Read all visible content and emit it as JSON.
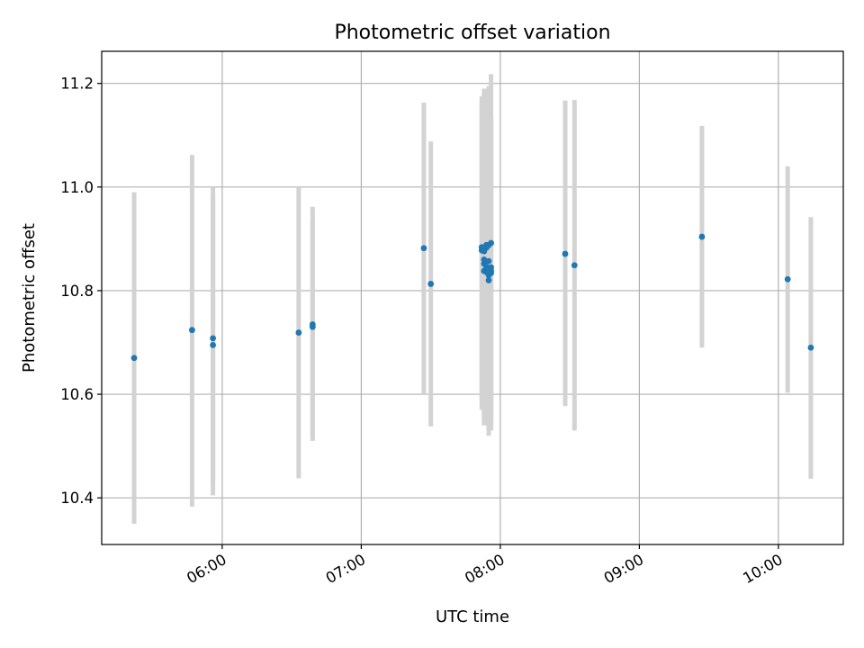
{
  "chart_data": {
    "type": "scatter",
    "title": "Photometric offset variation",
    "xlabel": "UTC time",
    "ylabel": "Photometric offset",
    "x_tick_labels": [
      "06:00",
      "07:00",
      "08:00",
      "09:00",
      "10:00"
    ],
    "x_ticks_hours": [
      6,
      7,
      8,
      9,
      10
    ],
    "y_tick_labels": [
      "10.4",
      "10.6",
      "10.8",
      "11.0",
      "11.2"
    ],
    "y_ticks": [
      10.4,
      10.6,
      10.8,
      11.0,
      11.2
    ],
    "xlim": [
      "05:08",
      "10:28"
    ],
    "ylim": [
      10.31,
      11.262
    ],
    "grid": true,
    "marker_color": "#1f77b4",
    "errorbar_color": "#d3d3d3",
    "points": [
      {
        "x": "05:22",
        "y": 10.67,
        "ylow": 10.35,
        "yhigh": 10.99
      },
      {
        "x": "05:47",
        "y": 10.724,
        "ylow": 10.383,
        "yhigh": 11.062
      },
      {
        "x": "05:56",
        "y": 10.708,
        "ylow": 10.43,
        "yhigh": 11.0
      },
      {
        "x": "05:56",
        "y": 10.695,
        "ylow": 10.405,
        "yhigh": 10.985
      },
      {
        "x": "06:33",
        "y": 10.719,
        "ylow": 10.438,
        "yhigh": 11.0
      },
      {
        "x": "06:39",
        "y": 10.73,
        "ylow": 10.52,
        "yhigh": 10.935
      },
      {
        "x": "06:39",
        "y": 10.735,
        "ylow": 10.51,
        "yhigh": 10.962
      },
      {
        "x": "07:27",
        "y": 10.882,
        "ylow": 10.6,
        "yhigh": 11.163
      },
      {
        "x": "07:30",
        "y": 10.813,
        "ylow": 10.538,
        "yhigh": 11.088
      },
      {
        "x": "07:52",
        "y": 10.884,
        "ylow": 10.57,
        "yhigh": 11.175
      },
      {
        "x": "07:52",
        "y": 10.878,
        "ylow": 10.59,
        "yhigh": 11.165
      },
      {
        "x": "07:53",
        "y": 10.86,
        "ylow": 10.55,
        "yhigh": 11.18
      },
      {
        "x": "07:53",
        "y": 10.852,
        "ylow": 10.565,
        "yhigh": 11.14
      },
      {
        "x": "07:53",
        "y": 10.838,
        "ylow": 10.54,
        "yhigh": 11.12
      },
      {
        "x": "07:53",
        "y": 10.876,
        "ylow": 10.56,
        "yhigh": 11.19
      },
      {
        "x": "07:54",
        "y": 10.883,
        "ylow": 10.555,
        "yhigh": 11.17
      },
      {
        "x": "07:54",
        "y": 10.846,
        "ylow": 10.548,
        "yhigh": 11.13
      },
      {
        "x": "07:54",
        "y": 10.836,
        "ylow": 10.54,
        "yhigh": 11.11
      },
      {
        "x": "07:54",
        "y": 10.888,
        "ylow": 10.575,
        "yhigh": 11.19
      },
      {
        "x": "07:55",
        "y": 10.842,
        "ylow": 10.545,
        "yhigh": 11.14
      },
      {
        "x": "07:55",
        "y": 10.83,
        "ylow": 10.54,
        "yhigh": 11.15
      },
      {
        "x": "07:55",
        "y": 10.82,
        "ylow": 10.52,
        "yhigh": 11.12
      },
      {
        "x": "07:55",
        "y": 10.888,
        "ylow": 10.58,
        "yhigh": 11.195
      },
      {
        "x": "07:55",
        "y": 10.857,
        "ylow": 10.55,
        "yhigh": 11.16
      },
      {
        "x": "07:56",
        "y": 10.834,
        "ylow": 10.53,
        "yhigh": 11.13
      },
      {
        "x": "07:56",
        "y": 10.845,
        "ylow": 10.545,
        "yhigh": 11.14
      },
      {
        "x": "07:56",
        "y": 10.838,
        "ylow": 10.54,
        "yhigh": 11.13
      },
      {
        "x": "07:56",
        "y": 10.892,
        "ylow": 10.565,
        "yhigh": 11.218
      },
      {
        "x": "08:28",
        "y": 10.871,
        "ylow": 10.577,
        "yhigh": 11.167
      },
      {
        "x": "08:32",
        "y": 10.849,
        "ylow": 10.53,
        "yhigh": 11.168
      },
      {
        "x": "09:27",
        "y": 10.904,
        "ylow": 10.69,
        "yhigh": 11.118
      },
      {
        "x": "10:04",
        "y": 10.822,
        "ylow": 10.603,
        "yhigh": 11.04
      },
      {
        "x": "10:14",
        "y": 10.69,
        "ylow": 10.437,
        "yhigh": 10.942
      }
    ]
  }
}
